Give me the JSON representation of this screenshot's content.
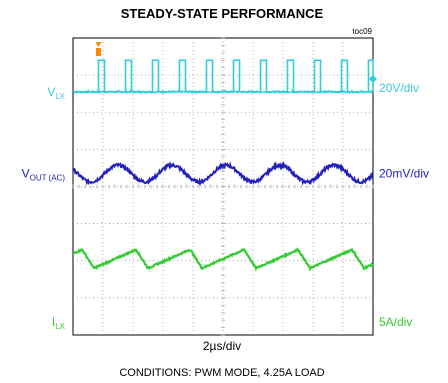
{
  "chart_data": {
    "type": "line",
    "title": "STEADY-STATE PERFORMANCE",
    "tag": "toc09",
    "time_scale": "2µs/div",
    "conditions": "CONDITIONS:  PWM MODE, 4.25A LOAD",
    "grid": true,
    "divisions": {
      "x": 10,
      "y": 8
    },
    "series": [
      {
        "name_main": "V",
        "name_sub": "LX",
        "scale": "20V/div",
        "color": "#33ccdd",
        "shape": "pulse",
        "period_div": 0.9,
        "first_edge_div": 0.85,
        "pulse_width_div": 0.2,
        "low_level_div": 6.55,
        "high_level_div": 7.4,
        "marker_color": "#ff8800"
      },
      {
        "name_main": "V",
        "name_sub": "OUT (AC)",
        "scale": "20mV/div",
        "color": "#2222bb",
        "shape": "ripple",
        "period_div": 1.8,
        "first_valley_div": 0.6,
        "center_div": 4.35,
        "peak_to_peak_div": 0.45
      },
      {
        "name_main": "I",
        "name_sub": "LX",
        "scale": "5A/div",
        "color": "#33cc33",
        "shape": "sawtooth",
        "period_div": 1.8,
        "first_valley_div": 0.7,
        "min_div": 1.8,
        "max_div": 2.3
      }
    ]
  }
}
